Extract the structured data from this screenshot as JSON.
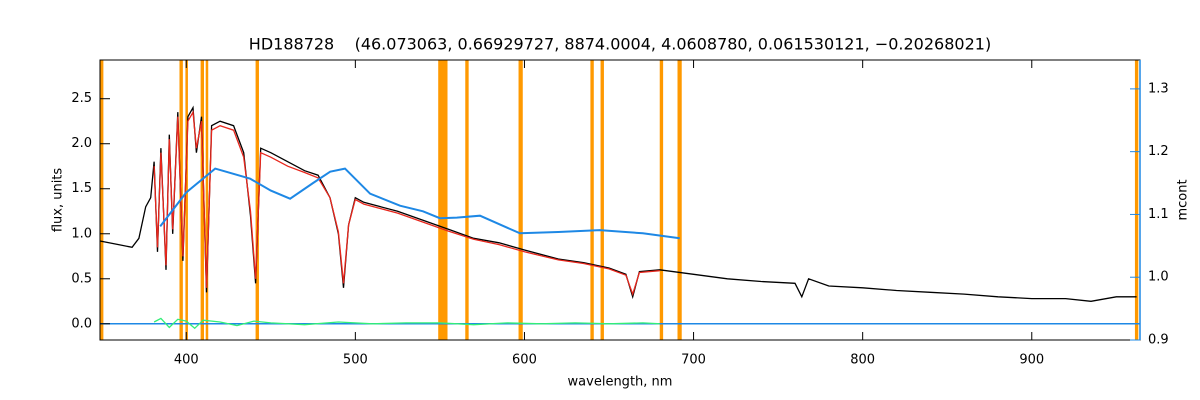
{
  "chart_data": {
    "type": "line",
    "title": "HD188728    (46.073063, 0.66929727, 8874.0004, 4.0608780, 0.061530121, −0.20268021)",
    "x_label": "wavelength, nm",
    "y_label": "flux, units",
    "y2_label": "mcont",
    "xlim": [
      349,
      964
    ],
    "ylim": [
      -0.18,
      2.93
    ],
    "y2lim": [
      0.9,
      1.346
    ],
    "xticks": [
      400,
      500,
      600,
      700,
      800,
      900
    ],
    "yticks": [
      {
        "value": 0,
        "label": "0.0"
      },
      0.5,
      {
        "value": 1,
        "label": "1.0"
      },
      1.5,
      {
        "value": 2,
        "label": "2.0"
      },
      2.5
    ],
    "y2ticks": [
      0.9,
      {
        "value": 1,
        "label": "1.0"
      },
      1.1,
      1.2,
      1.3
    ],
    "y2_color": "#1e88e5",
    "hline": {
      "value": 0,
      "color": "#1e88e5"
    },
    "mask_color": "#ff9900",
    "mask_ranges": [
      [
        349,
        351
      ],
      [
        396,
        398
      ],
      [
        399.5,
        401
      ],
      [
        408.5,
        410.5
      ],
      [
        411.5,
        413
      ],
      [
        441,
        443
      ],
      [
        549,
        554.5
      ],
      [
        565,
        567
      ],
      [
        596.5,
        599
      ],
      [
        639,
        641
      ],
      [
        645,
        647
      ],
      [
        680,
        682
      ],
      [
        690.5,
        693
      ],
      [
        961,
        963
      ]
    ],
    "series": [
      {
        "color": "#000000",
        "x": [
          349,
          360,
          368,
          372,
          376,
          379,
          381,
          383,
          385,
          388,
          390,
          392,
          395,
          398,
          401,
          404,
          406,
          409,
          412,
          415,
          420,
          428,
          434,
          438,
          441,
          444,
          450,
          460,
          470,
          478,
          485,
          490,
          493,
          496,
          500,
          505,
          515,
          525,
          540,
          555,
          570,
          585,
          600,
          620,
          635,
          650,
          660,
          664,
          668,
          680,
          700,
          720,
          740,
          760,
          764,
          768,
          780,
          800,
          820,
          840,
          860,
          880,
          900,
          920,
          935,
          950,
          962
        ],
        "values": [
          0.92,
          0.88,
          0.85,
          0.95,
          1.3,
          1.4,
          1.8,
          0.8,
          1.95,
          0.6,
          2.1,
          1.0,
          2.35,
          0.7,
          2.3,
          2.4,
          1.9,
          2.3,
          0.35,
          2.2,
          2.25,
          2.2,
          1.9,
          1.2,
          0.45,
          1.95,
          1.9,
          1.8,
          1.7,
          1.65,
          1.4,
          1.0,
          0.4,
          1.1,
          1.4,
          1.35,
          1.3,
          1.25,
          1.15,
          1.05,
          0.95,
          0.9,
          0.82,
          0.72,
          0.68,
          0.62,
          0.55,
          0.3,
          0.58,
          0.6,
          0.55,
          0.5,
          0.47,
          0.45,
          0.3,
          0.5,
          0.42,
          0.4,
          0.37,
          0.35,
          0.33,
          0.3,
          0.28,
          0.28,
          0.25,
          0.3,
          0.3
        ]
      },
      {
        "color": "#e8261c",
        "x": [
          381,
          383,
          385,
          388,
          390,
          392,
          395,
          398,
          401,
          404,
          406,
          409,
          412,
          415,
          420,
          428,
          434,
          438,
          441,
          444,
          450,
          460,
          470,
          478,
          485,
          490,
          493,
          496,
          500,
          505,
          515,
          525,
          540,
          555,
          570,
          585,
          600,
          620,
          635,
          650,
          660,
          664,
          668,
          680
        ],
        "values": [
          1.75,
          0.85,
          1.9,
          0.65,
          2.05,
          1.05,
          2.3,
          0.75,
          2.25,
          2.35,
          1.95,
          2.25,
          0.4,
          2.15,
          2.2,
          2.15,
          1.85,
          1.25,
          0.5,
          1.9,
          1.85,
          1.75,
          1.68,
          1.62,
          1.4,
          1.02,
          0.45,
          1.1,
          1.38,
          1.33,
          1.28,
          1.23,
          1.13,
          1.03,
          0.94,
          0.88,
          0.8,
          0.71,
          0.67,
          0.61,
          0.54,
          0.33,
          0.57,
          0.59
        ]
      },
      {
        "color": "#33ee77",
        "x": [
          381,
          385,
          390,
          395,
          400,
          405,
          410,
          420,
          430,
          440,
          450,
          470,
          490,
          510,
          530,
          550,
          570,
          590,
          610,
          630,
          650,
          670,
          680
        ],
        "values": [
          0.02,
          0.06,
          -0.04,
          0.05,
          0.03,
          -0.05,
          0.04,
          0.02,
          -0.02,
          0.03,
          0.01,
          -0.01,
          0.02,
          0.0,
          0.01,
          0.01,
          -0.01,
          0.01,
          0.0,
          0.01,
          0.0,
          0.01,
          0.0
        ]
      },
      {
        "color": "#1e88e5",
        "axis": "y2",
        "x": [
          384.6,
          400,
          417.1,
          437.8,
          450,
          461.4,
          475,
          485.1,
          493.9,
          508.7,
          526.4,
          540,
          550,
          560,
          573.7,
          597.3,
          620,
          644.5,
          670,
          691.8
        ],
        "values": [
          1.081,
          1.135,
          1.173,
          1.157,
          1.138,
          1.125,
          1.15,
          1.168,
          1.173,
          1.133,
          1.114,
          1.105,
          1.094,
          1.095,
          1.098,
          1.07,
          1.072,
          1.075,
          1.07,
          1.062
        ]
      }
    ]
  }
}
